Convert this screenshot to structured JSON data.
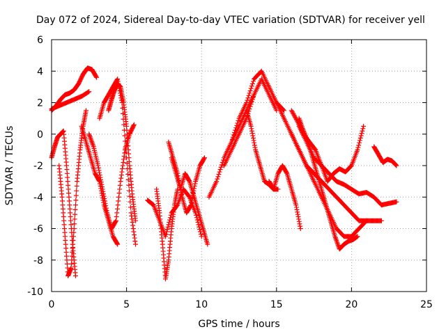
{
  "chart_data": {
    "type": "scatter",
    "title": "Day 072 of 2024, Sidereal Day-to-day VTEC variation (SDTVAR) for receiver yell",
    "xlabel": "GPS time / hours",
    "ylabel": "SDTVAR / TECUs",
    "xlim": [
      0,
      25
    ],
    "ylim": [
      -10,
      6
    ],
    "xticks": [
      0,
      5,
      10,
      15,
      20,
      25
    ],
    "xtick_labels": [
      "0",
      "5",
      "10",
      "15",
      "20",
      "25"
    ],
    "yticks": [
      -10,
      -8,
      -6,
      -4,
      -2,
      0,
      2,
      4,
      6
    ],
    "ytick_labels": [
      "-10",
      "-8",
      "-6",
      "-4",
      "-2",
      "0",
      "2",
      "4",
      "6"
    ],
    "grid": true,
    "marker": "+",
    "marker_color": "#ff0000",
    "series": [
      {
        "name": "s1",
        "x": [
          0.0,
          0.3,
          0.6,
          0.9,
          1.2,
          1.5,
          1.8,
          2.1,
          2.4,
          2.7,
          3.0
        ],
        "y": [
          1.5,
          1.8,
          2.2,
          2.5,
          2.6,
          2.8,
          3.2,
          3.8,
          4.2,
          4.1,
          3.6
        ]
      },
      {
        "name": "s2",
        "x": [
          0.0,
          0.2,
          0.4,
          0.6,
          0.8,
          1.0,
          1.2,
          1.4,
          1.6
        ],
        "y": [
          -1.5,
          -0.8,
          -0.2,
          0.0,
          0.2,
          -2.0,
          -4.5,
          -7.0,
          -9.0
        ]
      },
      {
        "name": "s3",
        "x": [
          0.5,
          0.7,
          0.9,
          1.1,
          1.3,
          1.5,
          1.7,
          1.9,
          2.1,
          2.3
        ],
        "y": [
          -2.0,
          -4.0,
          -6.5,
          -9.0,
          -8.5,
          -6.0,
          -3.0,
          -1.0,
          0.5,
          1.5
        ]
      },
      {
        "name": "s4",
        "x": [
          0.0,
          0.5,
          1.0,
          1.5,
          2.0,
          2.5
        ],
        "y": [
          1.6,
          1.8,
          2.0,
          2.2,
          2.4,
          2.7
        ]
      },
      {
        "name": "s5",
        "x": [
          2.5,
          2.8,
          3.1,
          3.4,
          3.7,
          4.0,
          4.3,
          4.6,
          4.9,
          5.2,
          5.5
        ],
        "y": [
          0.0,
          -0.8,
          -2.0,
          -3.5,
          -5.0,
          -6.0,
          -5.5,
          -3.0,
          -1.0,
          0.0,
          0.6
        ]
      },
      {
        "name": "s6",
        "x": [
          3.2,
          3.5,
          3.8,
          4.1,
          4.4,
          4.7,
          5.0,
          5.3,
          5.6
        ],
        "y": [
          1.0,
          2.0,
          2.5,
          3.0,
          3.5,
          2.0,
          -1.5,
          -5.0,
          -7.0
        ]
      },
      {
        "name": "s7",
        "x": [
          2.0,
          2.3,
          2.6,
          2.9,
          3.2,
          3.5,
          3.8,
          4.1,
          4.4
        ],
        "y": [
          0.5,
          -0.5,
          -1.5,
          -2.5,
          -3.0,
          -4.5,
          -5.5,
          -6.5,
          -7.0
        ]
      },
      {
        "name": "s8",
        "x": [
          3.8,
          4.0,
          4.2,
          4.4,
          4.6,
          4.8,
          5.0,
          5.2,
          5.4,
          5.6
        ],
        "y": [
          1.5,
          2.2,
          2.8,
          3.2,
          3.0,
          2.0,
          0.5,
          -2.0,
          -4.0,
          -5.5
        ]
      },
      {
        "name": "s9",
        "x": [
          6.4,
          6.8,
          7.2,
          7.6,
          8.0,
          8.4,
          8.8,
          9.2,
          9.6,
          10.0
        ],
        "y": [
          -4.2,
          -4.5,
          -5.5,
          -6.5,
          -5.0,
          -4.5,
          -3.5,
          -4.0,
          -5.0,
          -6.5
        ]
      },
      {
        "name": "s10",
        "x": [
          7.0,
          7.2,
          7.4,
          7.6,
          7.8,
          8.0,
          8.2,
          8.4
        ],
        "y": [
          -3.5,
          -5.0,
          -7.0,
          -9.2,
          -8.0,
          -6.0,
          -4.5,
          -3.5
        ]
      },
      {
        "name": "s11",
        "x": [
          8.0,
          8.3,
          8.6,
          8.9,
          9.2,
          9.5,
          9.8,
          10.1,
          10.4
        ],
        "y": [
          -1.5,
          -2.5,
          -3.5,
          -2.5,
          -3.0,
          -4.0,
          -5.0,
          -6.0,
          -7.0
        ]
      },
      {
        "name": "s12",
        "x": [
          7.8,
          8.1,
          8.4,
          8.7,
          9.0,
          9.3,
          9.6,
          9.9,
          10.2
        ],
        "y": [
          -0.5,
          -1.5,
          -2.5,
          -4.0,
          -5.0,
          -4.5,
          -3.0,
          -2.0,
          -1.5
        ]
      },
      {
        "name": "s13",
        "x": [
          10.5,
          11.0,
          11.5,
          12.0,
          12.5,
          13.0,
          13.5
        ],
        "y": [
          -4.0,
          -3.0,
          -1.5,
          -0.5,
          0.5,
          1.5,
          2.5
        ]
      },
      {
        "name": "s14",
        "x": [
          11.5,
          12.0,
          12.5,
          13.0,
          13.5,
          14.0,
          14.5,
          15.0
        ],
        "y": [
          -2.0,
          -1.0,
          0.0,
          1.0,
          2.5,
          3.5,
          2.5,
          1.5
        ]
      },
      {
        "name": "s15",
        "x": [
          12.0,
          12.5,
          13.0,
          13.5,
          14.0,
          14.5,
          15.0,
          15.5
        ],
        "y": [
          -0.5,
          1.0,
          2.0,
          3.5,
          4.0,
          3.0,
          2.0,
          1.5
        ]
      },
      {
        "name": "s16",
        "x": [
          13.0,
          13.3,
          13.6,
          13.9,
          14.2,
          14.5,
          14.8,
          15.1
        ],
        "y": [
          1.5,
          0.5,
          -1.0,
          -2.0,
          -3.0,
          -3.2,
          -3.5,
          -3.5
        ]
      },
      {
        "name": "s17",
        "x": [
          15.0,
          15.5,
          16.0,
          16.5,
          17.0,
          17.5,
          18.0,
          18.5,
          19.0,
          19.5,
          20.0,
          20.5,
          21.0
        ],
        "y": [
          2.0,
          1.0,
          0.0,
          -1.0,
          -2.0,
          -2.5,
          -3.0,
          -3.5,
          -4.0,
          -4.5,
          -5.0,
          -5.5,
          -5.5
        ]
      },
      {
        "name": "s18",
        "x": [
          16.0,
          16.5,
          17.0,
          17.5,
          18.0,
          18.5,
          19.0,
          19.5,
          20.0,
          20.5,
          21.0,
          21.5,
          22.0
        ],
        "y": [
          0.0,
          -1.0,
          -2.0,
          -3.0,
          -4.0,
          -5.0,
          -6.0,
          -6.5,
          -6.5,
          -6.0,
          -5.5,
          -5.5,
          -5.5
        ]
      },
      {
        "name": "s19",
        "x": [
          16.5,
          16.8,
          17.1,
          17.4,
          17.7,
          18.0,
          18.3,
          18.6,
          18.9,
          19.2,
          19.5,
          19.8,
          20.1,
          20.4
        ],
        "y": [
          1.0,
          0.2,
          -0.5,
          -1.5,
          -2.5,
          -3.5,
          -4.5,
          -5.5,
          -6.5,
          -7.3,
          -7.0,
          -6.8,
          -6.7,
          -6.5
        ]
      },
      {
        "name": "s20",
        "x": [
          16.0,
          16.4,
          16.8,
          17.2,
          17.6,
          18.0,
          18.4,
          18.8,
          19.2,
          19.6,
          20.0,
          20.4,
          20.8
        ],
        "y": [
          1.5,
          0.8,
          0.0,
          -0.5,
          -1.0,
          -2.0,
          -3.0,
          -2.5,
          -2.2,
          -2.4,
          -2.0,
          -1.0,
          0.5
        ]
      },
      {
        "name": "s21",
        "x": [
          16.5,
          17.0,
          17.5,
          18.0,
          18.5,
          19.0,
          19.5,
          20.0,
          20.5,
          21.0,
          21.5,
          22.0,
          22.5,
          23.0
        ],
        "y": [
          0.5,
          -0.5,
          -1.5,
          -2.0,
          -2.5,
          -3.0,
          -3.2,
          -3.5,
          -3.8,
          -3.7,
          -4.0,
          -4.5,
          -4.4,
          -4.3
        ]
      },
      {
        "name": "s22",
        "x": [
          21.5,
          21.8,
          22.1,
          22.4,
          22.7,
          23.0
        ],
        "y": [
          -0.8,
          -1.3,
          -1.8,
          -1.6,
          -1.7,
          -2.0
        ]
      },
      {
        "name": "s23",
        "x": [
          14.5,
          14.8,
          15.1,
          15.4,
          15.7,
          16.0,
          16.3,
          16.6
        ],
        "y": [
          -3.0,
          -3.5,
          -2.5,
          -2.0,
          -2.5,
          -3.5,
          -4.5,
          -6.0
        ]
      }
    ]
  }
}
